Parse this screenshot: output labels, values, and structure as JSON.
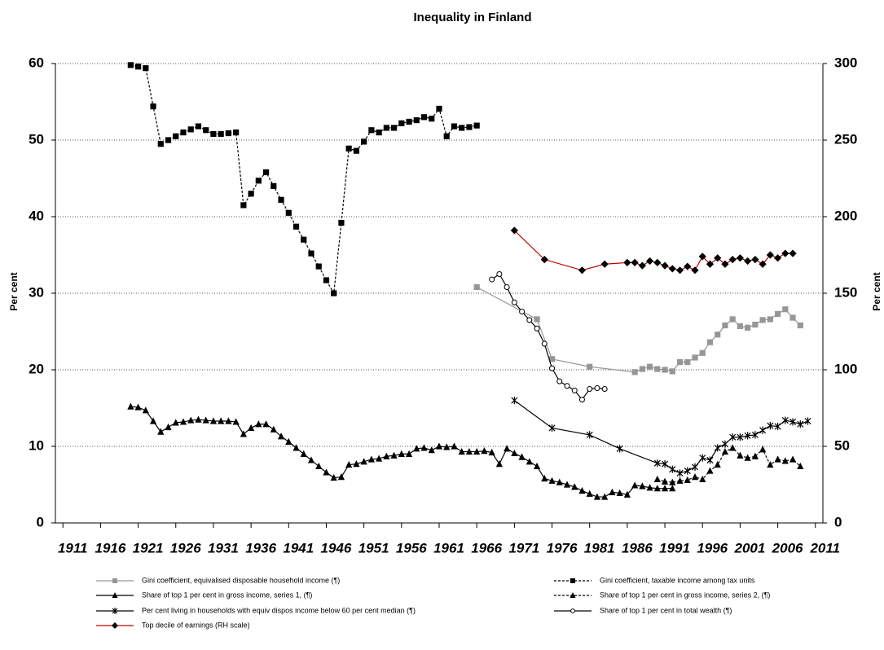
{
  "chart_data": {
    "type": "line",
    "title": "Inequality in Finland",
    "ylabel": "Per cent",
    "y2label": "Per cent",
    "xlim": [
      1910,
      2012
    ],
    "xticks": [
      1911,
      1916,
      1921,
      1926,
      1931,
      1936,
      1941,
      1946,
      1951,
      1956,
      1961,
      1966,
      1971,
      1976,
      1981,
      1986,
      1991,
      1996,
      2001,
      2006,
      2011
    ],
    "ylim": [
      0,
      60
    ],
    "yticks": [
      0,
      10,
      20,
      30,
      40,
      50,
      60
    ],
    "y2lim": [
      0,
      300
    ],
    "y2ticks": [
      0,
      50,
      100,
      150,
      200,
      250,
      300
    ],
    "grid": true,
    "series": [
      {
        "name": "Gini coefficient, equivalised disposable household income (¶)",
        "color": "#969696",
        "marker_color": "#969696",
        "marker": "square",
        "line_style": "solid",
        "x": [
          1966,
          1974,
          1976,
          1981,
          1987,
          1988,
          1989,
          1990,
          1991,
          1992,
          1993,
          1994,
          1995,
          1996,
          1997,
          1998,
          1999,
          2000,
          2001,
          2002,
          2003,
          2004,
          2005,
          2006,
          2007,
          2008,
          2009
        ],
        "values": [
          30.8,
          26.6,
          21.4,
          20.4,
          19.7,
          20.1,
          20.4,
          20.1,
          20,
          19.8,
          21,
          21,
          21.6,
          22.2,
          23.6,
          24.6,
          25.8,
          26.6,
          25.7,
          25.5,
          25.9,
          26.5,
          26.6,
          27.3,
          27.9,
          26.8,
          25.8
        ]
      },
      {
        "name": "Gini coefficient, taxable income among tax units",
        "color": "#000000",
        "marker_color": "#000000",
        "marker": "square",
        "line_style": "dashed",
        "x": [
          1920,
          1921,
          1922,
          1923,
          1924,
          1925,
          1926,
          1927,
          1928,
          1929,
          1930,
          1931,
          1932,
          1933,
          1934,
          1935,
          1936,
          1937,
          1938,
          1939,
          1940,
          1941,
          1942,
          1943,
          1944,
          1945,
          1946,
          1947,
          1948,
          1949,
          1950,
          1951,
          1952,
          1953,
          1954,
          1955,
          1956,
          1957,
          1958,
          1959,
          1960,
          1961,
          1962,
          1963,
          1964,
          1965,
          1966
        ],
        "values": [
          59.8,
          59.6,
          59.4,
          54.4,
          49.5,
          50,
          50.5,
          51,
          51.4,
          51.8,
          51.3,
          50.8,
          50.8,
          50.9,
          51,
          41.5,
          43,
          44.7,
          45.8,
          44,
          42.2,
          40.5,
          38.7,
          37,
          35.2,
          33.5,
          31.7,
          30,
          39.2,
          48.9,
          48.6,
          49.8,
          51.3,
          51,
          51.6,
          51.6,
          52.2,
          52.4,
          52.6,
          53,
          52.8,
          54.1,
          50.5,
          51.8,
          51.6,
          51.7,
          51.9
        ]
      },
      {
        "name": "Share of top 1 per cent in gross income, series 1, (¶)",
        "color": "#000000",
        "marker_color": "#000000",
        "marker": "triangle",
        "line_style": "solid",
        "x": [
          1920,
          1921,
          1922,
          1923,
          1924,
          1925,
          1926,
          1927,
          1928,
          1929,
          1930,
          1931,
          1932,
          1933,
          1934,
          1935,
          1936,
          1937,
          1938,
          1939,
          1940,
          1941,
          1942,
          1943,
          1944,
          1945,
          1946,
          1947,
          1948,
          1949,
          1950,
          1951,
          1952,
          1953,
          1954,
          1955,
          1956,
          1957,
          1958,
          1959,
          1960,
          1961,
          1962,
          1963,
          1964,
          1965,
          1966,
          1967,
          1968,
          1969,
          1970,
          1971,
          1972,
          1973,
          1974,
          1975,
          1976,
          1977,
          1978,
          1979,
          1980,
          1981,
          1982,
          1983,
          1984,
          1985,
          1986,
          1987,
          1988,
          1989,
          1990,
          1991,
          1992
        ],
        "values": [
          15.2,
          15.1,
          14.7,
          13.3,
          11.9,
          12.5,
          13.1,
          13.2,
          13.4,
          13.5,
          13.4,
          13.3,
          13.3,
          13.3,
          13.2,
          11.6,
          12.4,
          12.9,
          12.9,
          12.2,
          11.3,
          10.6,
          9.8,
          9,
          8.2,
          7.4,
          6.6,
          5.9,
          6,
          7.6,
          7.7,
          8,
          8.3,
          8.4,
          8.7,
          8.8,
          9,
          9,
          9.7,
          9.8,
          9.5,
          10,
          9.9,
          10,
          9.3,
          9.3,
          9.3,
          9.4,
          9.2,
          7.7,
          9.7,
          9.1,
          8.6,
          8,
          7.4,
          5.8,
          5.5,
          5.3,
          5,
          4.7,
          4.2,
          3.8,
          3.4,
          3.4,
          4,
          3.9,
          3.7,
          4.9,
          4.8,
          4.6,
          4.5,
          4.5,
          4.5
        ]
      },
      {
        "name": "Share of top 1 per cent in gross income, series 2, (¶)",
        "color": "#000000",
        "marker_color": "#000000",
        "marker": "triangle",
        "line_style": "dashed",
        "x": [
          1990,
          1991,
          1992,
          1993,
          1994,
          1995,
          1996,
          1997,
          1998,
          1999,
          2000,
          2001,
          2002,
          2003,
          2004,
          2005,
          2006,
          2007,
          2008,
          2009
        ],
        "values": [
          5.7,
          5.4,
          5.3,
          5.5,
          5.6,
          6,
          5.7,
          6.8,
          7.6,
          9.3,
          9.8,
          8.8,
          8.5,
          8.7,
          9.6,
          7.6,
          8.3,
          8.1,
          8.3,
          7.4
        ]
      },
      {
        "name": "Per cent living in households with equiv dispos income below 60 per cent median (¶)",
        "color": "#000000",
        "marker_color": "#000000",
        "marker": "asterisk",
        "line_style": "solid",
        "x": [
          1971,
          1976,
          1981,
          1985,
          1990,
          1991,
          1992,
          1993,
          1994,
          1995,
          1996,
          1997,
          1998,
          1999,
          2000,
          2001,
          2002,
          2003,
          2004,
          2005,
          2006,
          2007,
          2008,
          2009,
          2010
        ],
        "values": [
          16,
          12.4,
          11.5,
          9.7,
          7.8,
          7.7,
          7,
          6.5,
          6.8,
          7.3,
          8.5,
          8.2,
          9.8,
          10.3,
          11.2,
          11.2,
          11.4,
          11.5,
          12.1,
          12.7,
          12.6,
          13.4,
          13.2,
          12.9,
          13.3
        ]
      },
      {
        "name": "Share of top 1 per cent in total wealth (¶)",
        "color": "#000000",
        "marker_color": "#000000",
        "marker": "circle",
        "line_style": "solid",
        "x": [
          1968,
          1969,
          1970,
          1971,
          1972,
          1973,
          1974,
          1975,
          1976,
          1977,
          1978,
          1979,
          1980,
          1981,
          1982,
          1983
        ],
        "values": [
          31.8,
          32.5,
          30.8,
          28.8,
          27.6,
          26.5,
          25.4,
          23.4,
          20.2,
          18.5,
          17.9,
          17.3,
          16.1,
          17.5,
          17.6,
          17.5
        ]
      },
      {
        "name": "Top decile of earnings (RH scale)",
        "color": "#c00000",
        "marker_color": "#000000",
        "marker": "diamond",
        "line_style": "solid",
        "axis": "y2",
        "x": [
          1971,
          1975,
          1980,
          1983,
          1986,
          1987,
          1988,
          1989,
          1990,
          1991,
          1992,
          1993,
          1994,
          1995,
          1996,
          1997,
          1998,
          1999,
          2000,
          2001,
          2002,
          2003,
          2004,
          2005,
          2006,
          2007,
          2008
        ],
        "values": [
          191,
          172,
          165,
          169,
          170,
          170,
          168,
          171,
          170,
          168,
          166,
          165,
          167.5,
          165,
          174,
          169,
          173,
          169,
          172,
          173,
          171,
          172,
          169,
          175,
          173,
          176,
          176
        ]
      }
    ]
  }
}
